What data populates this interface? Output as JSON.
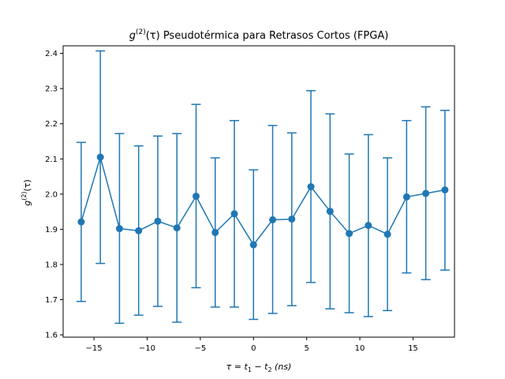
{
  "chart_data": {
    "type": "line",
    "title": {
      "base": "g",
      "sup": "(2)",
      "arg": "(τ)",
      "text": " Pseudotérmica para Retrasos Cortos (FPGA)"
    },
    "xlabel": {
      "tau": "τ",
      "eq": " = ",
      "t1": "t",
      "sub1": "1",
      "minus": " − ",
      "t2": "t",
      "sub2": "2",
      "unit": " (ns)"
    },
    "ylabel": {
      "base": "g",
      "sup": "(2)",
      "arg": "(τ)"
    },
    "xlim": [
      -17.9,
      18.9
    ],
    "ylim": [
      1.5935,
      2.4215
    ],
    "xticks": [
      -15,
      -10,
      -5,
      0,
      5,
      10,
      15
    ],
    "yticks": [
      1.6,
      1.7,
      1.8,
      1.9,
      2.0,
      2.1,
      2.2,
      2.3,
      2.4
    ],
    "color": "#1f77b4",
    "series": [
      {
        "x": [
          -16.2,
          -14.4,
          -12.6,
          -10.8,
          -9.0,
          -7.2,
          -5.4,
          -3.6,
          -1.8,
          0.0,
          1.8,
          3.6,
          5.4,
          7.2,
          9.0,
          10.8,
          12.6,
          14.4,
          16.2,
          18.0
        ],
        "y": [
          1.921,
          2.105,
          1.902,
          1.896,
          1.923,
          1.904,
          1.994,
          1.891,
          1.944,
          1.856,
          1.927,
          1.929,
          2.021,
          1.951,
          1.888,
          1.911,
          1.886,
          1.992,
          2.002,
          2.012
        ],
        "err_low": [
          1.695,
          1.803,
          1.633,
          1.656,
          1.681,
          1.636,
          1.734,
          1.679,
          1.679,
          1.644,
          1.661,
          1.683,
          1.749,
          1.674,
          1.663,
          1.652,
          1.669,
          1.776,
          1.757,
          1.784
        ],
        "err_high": [
          2.147,
          2.407,
          2.172,
          2.137,
          2.165,
          2.172,
          2.255,
          2.103,
          2.209,
          2.069,
          2.195,
          2.174,
          2.294,
          2.228,
          2.114,
          2.169,
          2.103,
          2.209,
          2.248,
          2.238
        ]
      }
    ]
  }
}
